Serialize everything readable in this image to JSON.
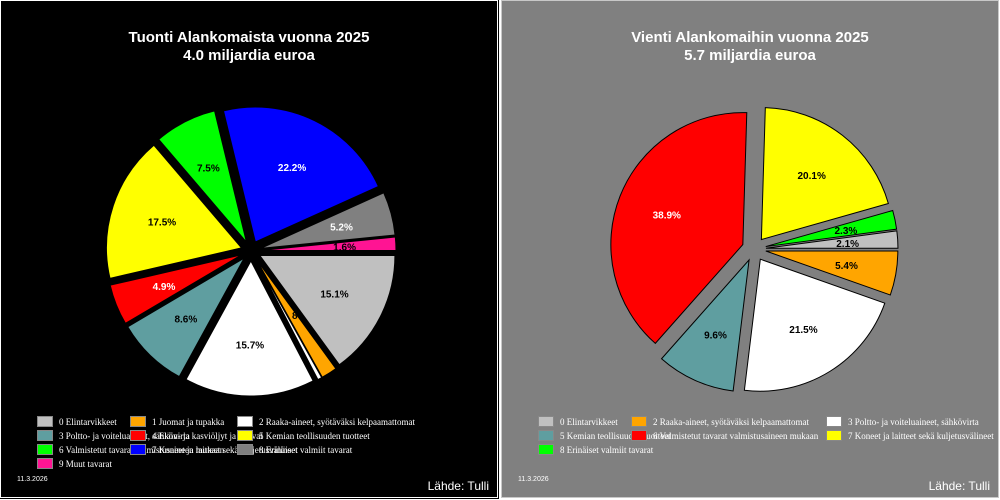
{
  "chart_data": [
    {
      "type": "pie",
      "title": "Tuonti Alankomaista vuonna 2025",
      "subtitle": "4.0 miljardia euroa",
      "background": "#000000",
      "date": "11.3.2026",
      "source": "Lähde: Tulli",
      "slices": [
        {
          "label": "0 Elintarvikkeet",
          "value": 15.1,
          "text": "15.1%",
          "color": "#c0c0c0",
          "text_color": "#000000"
        },
        {
          "label": "1 Juomat ja tupakka",
          "value": 1.9,
          "text": "",
          "color": "#ffa500",
          "text_color": "#000000"
        },
        {
          "label": "2 Raaka-aineet, syötäväksi kelpaamattomat",
          "value": 0.5,
          "text": "",
          "color": "#ffffff",
          "text_color": "#000000"
        },
        {
          "label": "3 Poltto- ja voiteluaineet, sähkövirta",
          "value": 0.0,
          "text": "",
          "color": "#5f9ea0",
          "text_color": "#000000"
        },
        {
          "label": "",
          "value": 15.7,
          "text": "15.7%",
          "color": "#ffffff",
          "text_color": "#000000"
        },
        {
          "label": "",
          "value": 8.6,
          "text": "8.6%",
          "color": "#5f9ea0",
          "text_color": "#000000"
        },
        {
          "label": "4 Eläin- ja kasviöljyt ja -rasvat",
          "value": 4.9,
          "text": "4.9%",
          "color": "#ff0000",
          "text_color": "#ffffff"
        },
        {
          "label": "5 Kemian teollisuuden tuotteet",
          "value": 17.5,
          "text": "17.5%",
          "color": "#ffff00",
          "text_color": "#000000"
        },
        {
          "label": "6 Valmistetut tavarat valmistusaineen mukaan",
          "value": 7.5,
          "text": "7.5%",
          "color": "#00ff00",
          "text_color": "#000000"
        },
        {
          "label": "7 Koneet ja laitteet sekä kuljetusvälineet",
          "value": 22.2,
          "text": "22.2%",
          "color": "#0000ff",
          "text_color": "#ffffff"
        },
        {
          "label": "8 Erinäiset valmiit tavarat",
          "value": 5.2,
          "text": "5.2%",
          "color": "#808080",
          "text_color": "#ffffff"
        },
        {
          "label": "9 Muut tavarat",
          "value": 1.6,
          "text": "1.6%",
          "color": "#ff1493",
          "text_color": "#000000"
        }
      ],
      "legend": [
        {
          "label": "0 Elintarvikkeet",
          "color": "#c0c0c0"
        },
        {
          "label": "1 Juomat ja tupakka",
          "color": "#ffa500"
        },
        {
          "label": "2 Raaka-aineet, syötäväksi kelpaamattomat",
          "color": "#ffffff"
        },
        {
          "label": "3 Poltto- ja voiteluaineet, sähkövirta",
          "color": "#5f9ea0"
        },
        {
          "label": "4 Eläin- ja kasviöljyt ja -rasvat",
          "color": "#ff0000"
        },
        {
          "label": "5 Kemian teollisuuden tuotteet",
          "color": "#ffff00"
        },
        {
          "label": "6 Valmistetut tavarat valmistusaineen mukaan",
          "color": "#00ff00"
        },
        {
          "label": "7 Koneet ja laitteet sekä kuljetusvälineet",
          "color": "#0000ff"
        },
        {
          "label": "8 Erinäiset valmiit tavarat",
          "color": "#808080"
        },
        {
          "label": "9 Muut tavarat",
          "color": "#ff1493"
        }
      ],
      "extra_label": "8"
    },
    {
      "type": "pie",
      "title": "Vienti Alankomaihin vuonna 2025",
      "subtitle": "5.7 miljardia euroa",
      "background": "#808080",
      "date": "11.3.2026",
      "source": "Lähde: Tulli",
      "slices": [
        {
          "label": "2 Raaka-aineet, syötäväksi kelpaamattomat",
          "value": 5.4,
          "text": "5.4%",
          "color": "#ffa500",
          "text_color": "#000000"
        },
        {
          "label": "3 Poltto- ja voiteluaineet, sähkövirta",
          "value": 21.5,
          "text": "21.5%",
          "color": "#ffffff",
          "text_color": "#000000"
        },
        {
          "label": "5 Kemian teollisuuden tuotteet",
          "value": 9.6,
          "text": "9.6%",
          "color": "#5f9ea0",
          "text_color": "#000000"
        },
        {
          "label": "6 Valmistetut tavarat valmistusaineen mukaan",
          "value": 38.9,
          "text": "38.9%",
          "color": "#ff0000",
          "text_color": "#ffffff"
        },
        {
          "label": "7 Koneet ja laitteet sekä kuljetusvälineet",
          "value": 20.1,
          "text": "20.1%",
          "color": "#ffff00",
          "text_color": "#000000"
        },
        {
          "label": "8 Erinäiset valmiit tavarat",
          "value": 2.3,
          "text": "2.3%",
          "color": "#00ff00",
          "text_color": "#000000"
        },
        {
          "label": "0 Elintarvikkeet",
          "value": 2.1,
          "text": "2.1%",
          "color": "#c0c0c0",
          "text_color": "#000000"
        }
      ],
      "legend": [
        {
          "label": "0 Elintarvikkeet",
          "color": "#c0c0c0"
        },
        {
          "label": "2 Raaka-aineet, syötäväksi kelpaamattomat",
          "color": "#ffa500"
        },
        {
          "label": "3 Poltto- ja voiteluaineet, sähkövirta",
          "color": "#ffffff"
        },
        {
          "label": "5 Kemian teollisuuden tuotteet",
          "color": "#5f9ea0"
        },
        {
          "label": "6 Valmistetut tavarat valmistusaineen mukaan",
          "color": "#ff0000"
        },
        {
          "label": "7 Koneet ja laitteet sekä kuljetusvälineet",
          "color": "#ffff00"
        },
        {
          "label": "8 Erinäiset valmiit tavarat",
          "color": "#00ff00"
        }
      ],
      "extra_label": ""
    }
  ]
}
